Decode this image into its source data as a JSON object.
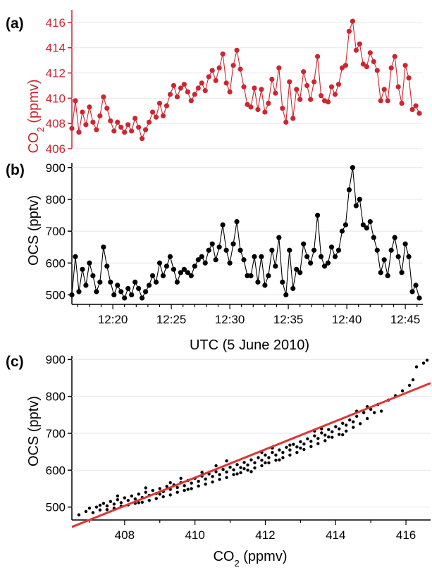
{
  "chart_data": [
    {
      "panel": "(a)",
      "type": "line",
      "ylabel": "CO",
      "ylabel_sub": "2",
      "ylabel_unit": " (ppmv)",
      "ylim": [
        406,
        417
      ],
      "yticks": [
        406,
        408,
        410,
        412,
        414,
        416
      ],
      "xlim": [
        16.5,
        46.5
      ],
      "color": "#cc2630",
      "series": [
        {
          "x": [
            16.5,
            16.8,
            17.1,
            17.4,
            17.7,
            18.0,
            18.3,
            18.6,
            18.9,
            19.2,
            19.5,
            19.8,
            20.1,
            20.4,
            20.7,
            21.0,
            21.3,
            21.6,
            21.9,
            22.2,
            22.5,
            22.8,
            23.1,
            23.4,
            23.7,
            24.0,
            24.3,
            24.6,
            24.9,
            25.2,
            25.5,
            25.8,
            26.1,
            26.4,
            26.7,
            27.0,
            27.3,
            27.6,
            27.9,
            28.2,
            28.5,
            28.8,
            29.1,
            29.4,
            29.7,
            30.0,
            30.3,
            30.6,
            30.9,
            31.2,
            31.5,
            31.8,
            32.1,
            32.4,
            32.7,
            33.0,
            33.3,
            33.6,
            33.9,
            34.2,
            34.5,
            34.8,
            35.1,
            35.4,
            35.7,
            36.0,
            36.3,
            36.6,
            36.9,
            37.2,
            37.5,
            37.8,
            38.1,
            38.4,
            38.7,
            39.0,
            39.3,
            39.6,
            39.9,
            40.2,
            40.5,
            40.8,
            41.1,
            41.4,
            41.7,
            42.0,
            42.3,
            42.6,
            42.9,
            43.2,
            43.5,
            43.8,
            44.1,
            44.4,
            44.7,
            45.0,
            45.3,
            45.6,
            45.9,
            46.2
          ],
          "y": [
            407.6,
            409.8,
            407.3,
            408.9,
            407.9,
            409.3,
            408.1,
            407.5,
            408.6,
            410.1,
            409.2,
            408.2,
            407.4,
            408.1,
            407.7,
            407.3,
            407.9,
            407.4,
            408.4,
            407.7,
            406.8,
            407.5,
            408.1,
            408.9,
            408.5,
            409.6,
            408.6,
            409.4,
            410.3,
            411.0,
            410.1,
            410.8,
            411.1,
            410.5,
            409.8,
            410.3,
            410.8,
            411.2,
            410.6,
            411.7,
            412.2,
            411.4,
            412.4,
            413.5,
            411.2,
            410.5,
            412.6,
            413.8,
            412.3,
            410.9,
            409.5,
            409.3,
            410.8,
            409.1,
            410.7,
            408.9,
            409.6,
            411.5,
            410.4,
            412.4,
            409.2,
            408.1,
            411.3,
            408.4,
            410.7,
            409.9,
            412.1,
            411.0,
            409.9,
            411.3,
            413.3,
            410.2,
            409.8,
            409.7,
            410.9,
            410.3,
            411.1,
            412.4,
            412.6,
            415.3,
            416.1,
            413.8,
            414.3,
            412.7,
            412.5,
            413.6,
            412.9,
            412.2,
            409.8,
            410.7,
            409.8,
            412.4,
            413.3,
            410.9,
            409.6,
            412.6,
            411.6,
            409.1,
            409.4,
            408.8
          ]
        }
      ]
    },
    {
      "panel": "(b)",
      "type": "line",
      "ylabel": "OCS (pptv)",
      "ylim": [
        470,
        915
      ],
      "yticks": [
        500,
        600,
        700,
        800,
        900
      ],
      "xlim": [
        16.5,
        46.5
      ],
      "xtick_values": [
        20,
        25,
        30,
        35,
        40,
        45
      ],
      "xtick_labels": [
        "12:20",
        "12:25",
        "12:30",
        "12:35",
        "12:40",
        "12:45"
      ],
      "xlabel": "UTC (5 June 2010)",
      "color": "#000000",
      "series": [
        {
          "x": [
            16.5,
            16.8,
            17.1,
            17.4,
            17.7,
            18.0,
            18.3,
            18.6,
            18.9,
            19.2,
            19.5,
            19.8,
            20.1,
            20.4,
            20.7,
            21.0,
            21.3,
            21.6,
            21.9,
            22.2,
            22.5,
            22.8,
            23.1,
            23.4,
            23.7,
            24.0,
            24.3,
            24.6,
            24.9,
            25.2,
            25.5,
            25.8,
            26.1,
            26.4,
            26.7,
            27.0,
            27.3,
            27.6,
            27.9,
            28.2,
            28.5,
            28.8,
            29.1,
            29.4,
            29.7,
            30.0,
            30.3,
            30.6,
            30.9,
            31.2,
            31.5,
            31.8,
            32.1,
            32.4,
            32.7,
            33.0,
            33.3,
            33.6,
            33.9,
            34.2,
            34.5,
            34.8,
            35.1,
            35.4,
            35.7,
            36.0,
            36.3,
            36.6,
            36.9,
            37.2,
            37.5,
            37.8,
            38.1,
            38.4,
            38.7,
            39.0,
            39.3,
            39.6,
            39.9,
            40.2,
            40.5,
            40.8,
            41.1,
            41.4,
            41.7,
            42.0,
            42.3,
            42.6,
            42.9,
            43.2,
            43.5,
            43.8,
            44.1,
            44.4,
            44.7,
            45.0,
            45.3,
            45.6,
            45.9,
            46.2
          ],
          "y": [
            500,
            620,
            510,
            580,
            530,
            600,
            560,
            510,
            540,
            650,
            590,
            540,
            500,
            530,
            510,
            490,
            520,
            500,
            540,
            520,
            490,
            510,
            530,
            560,
            540,
            600,
            560,
            590,
            620,
            580,
            540,
            570,
            580,
            570,
            560,
            590,
            610,
            620,
            600,
            640,
            660,
            610,
            650,
            720,
            640,
            600,
            660,
            730,
            640,
            610,
            560,
            560,
            620,
            540,
            620,
            530,
            560,
            640,
            590,
            680,
            540,
            500,
            640,
            520,
            580,
            570,
            660,
            620,
            600,
            640,
            750,
            620,
            590,
            600,
            650,
            620,
            640,
            700,
            720,
            830,
            900,
            780,
            800,
            720,
            710,
            730,
            680,
            640,
            570,
            610,
            560,
            640,
            680,
            620,
            570,
            660,
            620,
            510,
            530,
            490
          ]
        }
      ]
    },
    {
      "panel": "(c)",
      "type": "scatter",
      "xlabel": "CO",
      "xlabel_sub": "2",
      "xlabel_unit": " (ppmv)",
      "ylabel": "OCS (pptv)",
      "xlim": [
        406.5,
        416.7
      ],
      "ylim": [
        465,
        910
      ],
      "xticks": [
        408,
        410,
        412,
        414,
        416
      ],
      "yticks": [
        500,
        600,
        700,
        800,
        900
      ],
      "point_color": "#000000",
      "fit_line": {
        "color": "#e03535",
        "x": [
          406.5,
          416.7
        ],
        "y": [
          446,
          836
        ]
      },
      "points": [
        [
          406.7,
          479
        ],
        [
          406.9,
          488
        ],
        [
          407.0,
          497
        ],
        [
          407.1,
          485
        ],
        [
          407.2,
          500
        ],
        [
          407.3,
          492
        ],
        [
          407.3,
          505
        ],
        [
          407.4,
          510
        ],
        [
          407.5,
          493
        ],
        [
          407.5,
          503
        ],
        [
          407.6,
          515
        ],
        [
          407.7,
          497
        ],
        [
          407.7,
          508
        ],
        [
          407.8,
          520
        ],
        [
          407.9,
          502
        ],
        [
          407.9,
          512
        ],
        [
          408.0,
          525
        ],
        [
          408.1,
          506
        ],
        [
          408.1,
          518
        ],
        [
          408.2,
          530
        ],
        [
          408.3,
          510
        ],
        [
          408.3,
          522
        ],
        [
          408.4,
          535
        ],
        [
          408.5,
          513
        ],
        [
          408.5,
          526
        ],
        [
          408.6,
          540
        ],
        [
          408.7,
          518
        ],
        [
          408.7,
          532
        ],
        [
          408.8,
          545
        ],
        [
          408.9,
          523
        ],
        [
          408.9,
          537
        ],
        [
          409.0,
          550
        ],
        [
          409.1,
          528
        ],
        [
          409.1,
          542
        ],
        [
          409.2,
          556
        ],
        [
          409.3,
          533
        ],
        [
          409.3,
          548
        ],
        [
          409.4,
          560
        ],
        [
          409.5,
          540
        ],
        [
          409.5,
          553
        ],
        [
          409.6,
          566
        ],
        [
          409.7,
          545
        ],
        [
          409.7,
          558
        ],
        [
          409.8,
          572
        ],
        [
          409.9,
          550
        ],
        [
          409.9,
          565
        ],
        [
          410.0,
          578
        ],
        [
          410.1,
          557
        ],
        [
          410.1,
          570
        ],
        [
          410.2,
          584
        ],
        [
          410.3,
          562
        ],
        [
          410.3,
          576
        ],
        [
          410.4,
          590
        ],
        [
          410.5,
          568
        ],
        [
          410.5,
          583
        ],
        [
          410.6,
          596
        ],
        [
          410.7,
          575
        ],
        [
          410.7,
          588
        ],
        [
          410.8,
          602
        ],
        [
          410.9,
          580
        ],
        [
          410.9,
          595
        ],
        [
          411.0,
          608
        ],
        [
          411.1,
          588
        ],
        [
          411.1,
          601
        ],
        [
          411.2,
          615
        ],
        [
          411.3,
          593
        ],
        [
          411.3,
          607
        ],
        [
          411.4,
          621
        ],
        [
          411.5,
          600
        ],
        [
          411.5,
          614
        ],
        [
          411.6,
          628
        ],
        [
          411.7,
          606
        ],
        [
          411.7,
          620
        ],
        [
          411.8,
          634
        ],
        [
          411.9,
          612
        ],
        [
          411.9,
          627
        ],
        [
          412.0,
          641
        ],
        [
          412.1,
          620
        ],
        [
          412.1,
          634
        ],
        [
          412.2,
          648
        ],
        [
          412.3,
          627
        ],
        [
          412.3,
          641
        ],
        [
          412.4,
          655
        ],
        [
          412.5,
          634
        ],
        [
          412.5,
          648
        ],
        [
          412.6,
          662
        ],
        [
          412.7,
          641
        ],
        [
          412.7,
          655
        ],
        [
          412.8,
          670
        ],
        [
          412.9,
          648
        ],
        [
          412.9,
          663
        ],
        [
          413.0,
          677
        ],
        [
          413.1,
          656
        ],
        [
          413.1,
          671
        ],
        [
          413.2,
          685
        ],
        [
          413.3,
          664
        ],
        [
          413.3,
          678
        ],
        [
          413.4,
          693
        ],
        [
          413.5,
          672
        ],
        [
          413.5,
          686
        ],
        [
          413.6,
          701
        ],
        [
          413.7,
          680
        ],
        [
          413.7,
          695
        ],
        [
          413.8,
          710
        ],
        [
          413.9,
          689
        ],
        [
          413.9,
          704
        ],
        [
          414.0,
          718
        ],
        [
          414.1,
          697
        ],
        [
          414.1,
          712
        ],
        [
          414.2,
          727
        ],
        [
          414.3,
          706
        ],
        [
          414.3,
          722
        ],
        [
          414.4,
          736
        ],
        [
          414.5,
          716
        ],
        [
          414.5,
          731
        ],
        [
          414.6,
          746
        ],
        [
          414.7,
          726
        ],
        [
          414.8,
          756
        ],
        [
          414.9,
          740
        ],
        [
          415.0,
          765
        ],
        [
          415.2,
          778
        ],
        [
          415.3,
          760
        ],
        [
          415.5,
          790
        ],
        [
          415.7,
          802
        ],
        [
          415.9,
          815
        ],
        [
          416.1,
          830
        ],
        [
          416.2,
          845
        ],
        [
          416.3,
          880
        ],
        [
          416.5,
          890
        ],
        [
          416.6,
          898
        ],
        [
          409.3,
          566
        ],
        [
          410.9,
          625
        ],
        [
          411.6,
          596
        ],
        [
          413.6,
          712
        ],
        [
          414.2,
          696
        ],
        [
          408.4,
          512
        ],
        [
          409.8,
          548
        ],
        [
          412.4,
          628
        ],
        [
          410.6,
          612
        ],
        [
          411.2,
          590
        ],
        [
          413.0,
          660
        ],
        [
          415.1,
          756
        ],
        [
          407.8,
          530
        ],
        [
          409.0,
          535
        ],
        [
          411.9,
          648
        ],
        [
          412.7,
          668
        ],
        [
          414.9,
          772
        ],
        [
          410.2,
          594
        ],
        [
          412.0,
          620
        ],
        [
          413.4,
          706
        ],
        [
          408.6,
          552
        ],
        [
          411.4,
          604
        ],
        [
          409.6,
          578
        ],
        [
          414.6,
          760
        ],
        [
          413.8,
          690
        ],
        [
          412.2,
          660
        ]
      ]
    }
  ]
}
